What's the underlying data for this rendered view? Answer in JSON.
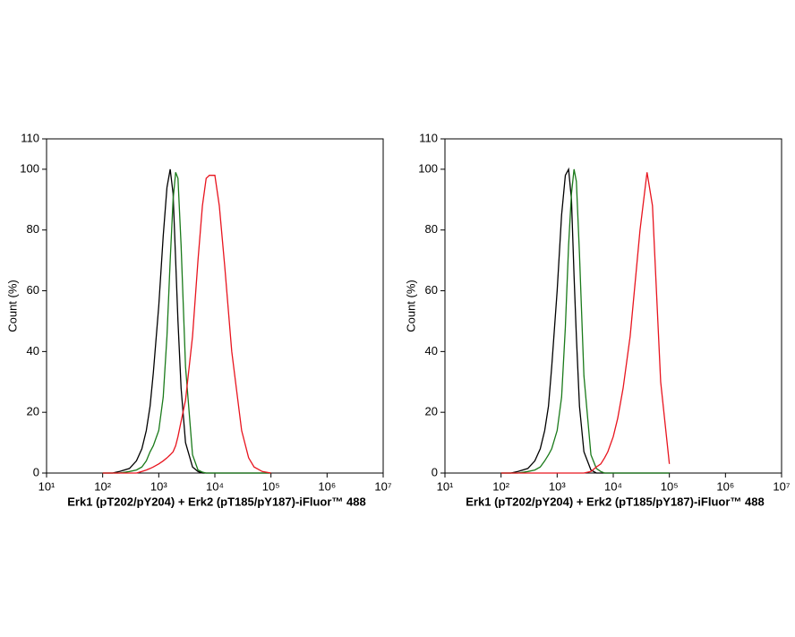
{
  "chart_data": [
    {
      "type": "line",
      "x_label": "Erk1 (pT202/pY204) + Erk2 (pT185/pY187)-iFluor™ 488",
      "y_label": "Count  (%)",
      "x_scale": "log",
      "xlim": [
        10,
        10000000
      ],
      "xticks": [
        {
          "value": 10,
          "label": "10¹"
        },
        {
          "value": 100,
          "label": "10²"
        },
        {
          "value": 1000,
          "label": "10³"
        },
        {
          "value": 10000,
          "label": "10⁴"
        },
        {
          "value": 100000,
          "label": "10⁵"
        },
        {
          "value": 1000000,
          "label": "10⁶"
        },
        {
          "value": 10000000,
          "label": "10⁷"
        }
      ],
      "ylim": [
        0,
        110
      ],
      "yticks": [
        0,
        20,
        40,
        60,
        80,
        100,
        110
      ],
      "x": [
        100,
        150,
        200,
        300,
        400,
        500,
        600,
        700,
        800,
        1000,
        1200,
        1400,
        1600,
        1800,
        2000,
        2200,
        2500,
        3000,
        4000,
        5000,
        6000,
        7000,
        8000,
        10000,
        12000,
        15000,
        20000,
        30000,
        40000,
        50000,
        70000,
        100000
      ],
      "series": [
        {
          "color": "#000000",
          "values": [
            0,
            0,
            0.5,
            1.5,
            4,
            8,
            14,
            22,
            33,
            55,
            78,
            94,
            100,
            92,
            70,
            50,
            28,
            10,
            2,
            0.5,
            0,
            0,
            0,
            0,
            0,
            0,
            0,
            0,
            0,
            0,
            0,
            0
          ]
        },
        {
          "color": "#1a7a1a",
          "values": [
            0,
            0,
            0,
            0.5,
            1,
            2,
            4,
            7,
            9,
            14,
            25,
            45,
            70,
            90,
            99,
            97,
            75,
            35,
            6,
            1,
            0.3,
            0,
            0,
            0,
            0,
            0,
            0,
            0,
            0,
            0,
            0,
            0
          ]
        },
        {
          "color": "#e8141e",
          "values": [
            0,
            0,
            0,
            0,
            0,
            0.5,
            1,
            1.5,
            2,
            3,
            4,
            5,
            6,
            7,
            9,
            12,
            17,
            24,
            45,
            70,
            88,
            97,
            98,
            98,
            88,
            68,
            40,
            14,
            5,
            2,
            0.5,
            0
          ]
        }
      ]
    },
    {
      "type": "line",
      "x_label": "Erk1 (pT202/pY204) + Erk2 (pT185/pY187)-iFluor™ 488",
      "y_label": "Count  (%)",
      "x_scale": "log",
      "xlim": [
        10,
        10000000
      ],
      "xticks": [
        {
          "value": 10,
          "label": "10¹"
        },
        {
          "value": 100,
          "label": "10²"
        },
        {
          "value": 1000,
          "label": "10³"
        },
        {
          "value": 10000,
          "label": "10⁴"
        },
        {
          "value": 100000,
          "label": "10⁵"
        },
        {
          "value": 1000000,
          "label": "10⁶"
        },
        {
          "value": 10000000,
          "label": "10⁷"
        }
      ],
      "ylim": [
        0,
        110
      ],
      "yticks": [
        0,
        20,
        40,
        60,
        80,
        100,
        110
      ],
      "x": [
        100,
        150,
        200,
        300,
        400,
        500,
        600,
        700,
        800,
        1000,
        1200,
        1400,
        1600,
        1800,
        2000,
        2200,
        2500,
        3000,
        4000,
        5000,
        6000,
        7000,
        8000,
        10000,
        12000,
        15000,
        20000,
        30000,
        40000,
        50000,
        70000,
        100000
      ],
      "series": [
        {
          "color": "#000000",
          "values": [
            0,
            0,
            0.5,
            1.5,
            4,
            8,
            14,
            22,
            35,
            60,
            85,
            98,
            100,
            90,
            65,
            45,
            22,
            7,
            1,
            0,
            0,
            0,
            0,
            0,
            0,
            0,
            0,
            0,
            0,
            0,
            0,
            0
          ]
        },
        {
          "color": "#1a7a1a",
          "values": [
            0,
            0,
            0,
            0.5,
            1,
            2,
            4,
            6,
            8,
            14,
            25,
            48,
            75,
            92,
            100,
            96,
            72,
            32,
            6,
            1.5,
            0.5,
            0,
            0,
            0,
            0,
            0,
            0,
            0,
            0,
            0,
            0,
            0
          ]
        },
        {
          "color": "#e8141e",
          "values": [
            0,
            0,
            0,
            0,
            0,
            0,
            0,
            0,
            0,
            0,
            0,
            0,
            0,
            0,
            0,
            0,
            0,
            0,
            0.5,
            2,
            3,
            5,
            7,
            12,
            18,
            28,
            45,
            80,
            99,
            88,
            30,
            3
          ]
        }
      ]
    }
  ]
}
